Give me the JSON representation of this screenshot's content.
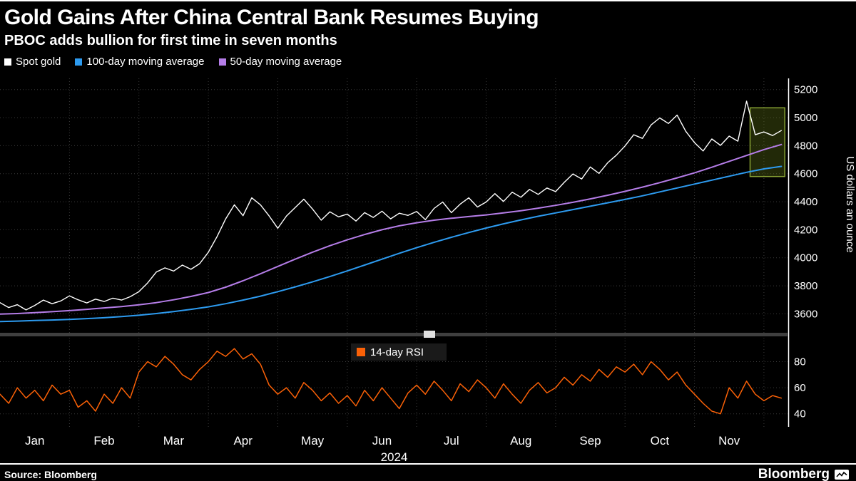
{
  "header": {
    "title": "Gold Gains After China Central Bank Resumes Buying",
    "subtitle": "PBOC adds bullion for first time in seven months"
  },
  "legend": {
    "items": [
      {
        "label": "Spot gold",
        "color": "#ffffff"
      },
      {
        "label": "100-day moving average",
        "color": "#2d9bf0"
      },
      {
        "label": "50-day moving average",
        "color": "#b57de8"
      }
    ]
  },
  "rsi_legend": {
    "label": "14-day RSI",
    "color": "#fb6107"
  },
  "source": "Source: Bloomberg",
  "brand": "Bloomberg",
  "chart_data": [
    {
      "type": "line",
      "title": "Spot gold price with moving averages, 2024",
      "ylabel": "US dollars an ounce",
      "x_unit": "month index (Jan 2024 = 0)",
      "xlim": [
        0,
        11.35
      ],
      "ylim": [
        3480,
        5280
      ],
      "yticks": [
        3600,
        3800,
        4000,
        4200,
        4400,
        4600,
        4800,
        5000,
        5200
      ],
      "xtick_labels": [
        "Jan",
        "Feb",
        "Mar",
        "Apr",
        "May",
        "Jun",
        "Jul",
        "Aug",
        "Sep",
        "Oct",
        "Nov"
      ],
      "x_year_label": "2024",
      "grid": "dotted",
      "legend_position": "top-left",
      "highlight_box": {
        "x0": 10.8,
        "x1": 11.3,
        "y0": 4580,
        "y1": 5070,
        "stroke": "#87a133",
        "fill": "rgba(96,118,24,0.35)"
      },
      "series": [
        {
          "name": "Spot gold",
          "color": "#ffffff",
          "x0": 0,
          "dx": 0.125,
          "values": [
            3680,
            3645,
            3665,
            3628,
            3660,
            3698,
            3672,
            3692,
            3728,
            3700,
            3678,
            3705,
            3688,
            3712,
            3698,
            3722,
            3758,
            3820,
            3898,
            3928,
            3905,
            3948,
            3918,
            3958,
            4040,
            4150,
            4278,
            4378,
            4300,
            4428,
            4378,
            4298,
            4210,
            4298,
            4358,
            4418,
            4348,
            4268,
            4328,
            4292,
            4312,
            4262,
            4322,
            4288,
            4332,
            4278,
            4318,
            4302,
            4330,
            4272,
            4352,
            4398,
            4322,
            4382,
            4428,
            4362,
            4398,
            4458,
            4402,
            4468,
            4432,
            4488,
            4452,
            4498,
            4472,
            4538,
            4598,
            4562,
            4648,
            4602,
            4678,
            4732,
            4798,
            4878,
            4852,
            4948,
            4998,
            4958,
            5018,
            4902,
            4822,
            4762,
            4848,
            4802,
            4868,
            4832,
            5118,
            4878,
            4898,
            4872,
            4908
          ]
        },
        {
          "name": "100-day moving average",
          "color": "#2d9bf0",
          "x0": 0,
          "dx": 0.25,
          "values": [
            3545,
            3548,
            3552,
            3556,
            3560,
            3566,
            3572,
            3580,
            3590,
            3602,
            3616,
            3632,
            3650,
            3672,
            3698,
            3726,
            3758,
            3792,
            3828,
            3866,
            3906,
            3948,
            3990,
            4032,
            4072,
            4110,
            4146,
            4180,
            4212,
            4242,
            4270,
            4296,
            4320,
            4344,
            4368,
            4392,
            4416,
            4442,
            4470,
            4498,
            4526,
            4554,
            4582,
            4610,
            4634,
            4652
          ]
        },
        {
          "name": "50-day moving average",
          "color": "#b57de8",
          "x0": 0,
          "dx": 0.25,
          "values": [
            3598,
            3602,
            3608,
            3615,
            3623,
            3632,
            3642,
            3652,
            3664,
            3680,
            3700,
            3724,
            3752,
            3790,
            3836,
            3886,
            3938,
            3990,
            4040,
            4086,
            4128,
            4166,
            4200,
            4228,
            4250,
            4268,
            4282,
            4294,
            4306,
            4320,
            4336,
            4354,
            4374,
            4396,
            4420,
            4446,
            4474,
            4504,
            4536,
            4570,
            4606,
            4646,
            4688,
            4730,
            4772,
            4808
          ]
        }
      ]
    },
    {
      "type": "line",
      "title": "14-day RSI",
      "x_unit": "month index (Jan 2024 = 0)",
      "xlim": [
        0,
        11.35
      ],
      "ylim": [
        30,
        95
      ],
      "yticks": [
        40,
        60,
        80
      ],
      "grid": "dotted",
      "series": [
        {
          "name": "14-day RSI",
          "color": "#fb6107",
          "x0": 0,
          "dx": 0.125,
          "values": [
            55,
            48,
            60,
            52,
            58,
            50,
            62,
            55,
            58,
            45,
            50,
            42,
            55,
            48,
            60,
            52,
            72,
            80,
            76,
            84,
            78,
            70,
            66,
            74,
            80,
            88,
            84,
            90,
            82,
            86,
            78,
            62,
            55,
            60,
            52,
            64,
            58,
            50,
            56,
            48,
            54,
            46,
            58,
            50,
            60,
            52,
            44,
            56,
            62,
            55,
            65,
            58,
            50,
            63,
            57,
            66,
            60,
            52,
            63,
            55,
            48,
            58,
            64,
            56,
            60,
            68,
            62,
            70,
            65,
            74,
            68,
            76,
            72,
            78,
            70,
            80,
            74,
            66,
            72,
            62,
            55,
            48,
            42,
            40,
            60,
            52,
            65,
            55,
            50,
            54,
            52
          ]
        }
      ]
    }
  ]
}
